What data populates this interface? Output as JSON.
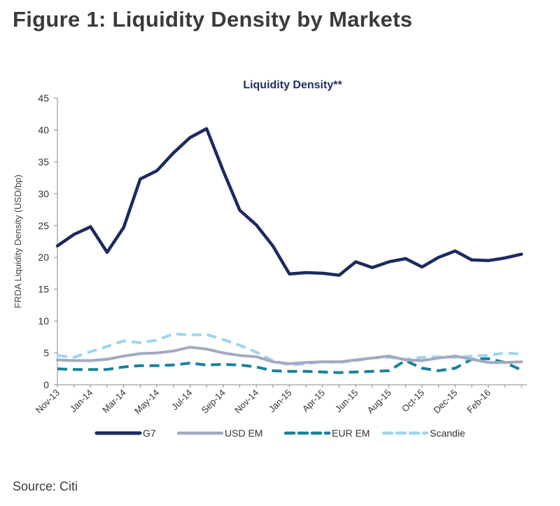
{
  "page": {
    "figure_title": "Figure 1: Liquidity Density by Markets",
    "source": "Source: Citi"
  },
  "chart_data": {
    "type": "line",
    "title": "Liquidity Density**",
    "xlabel": "",
    "ylabel": "FRDA Liquidity Density (USD/bp)",
    "ylim": [
      0,
      45
    ],
    "yticks": [
      0,
      5,
      10,
      15,
      20,
      25,
      30,
      35,
      40,
      45
    ],
    "grid": false,
    "legend": "bottom",
    "categories": [
      "Nov-13",
      "Dec-13",
      "Jan-14",
      "Feb-14",
      "Mar-14",
      "Apr-14",
      "May-14",
      "Jun-14",
      "Jul-14",
      "Aug-14",
      "Sep-14",
      "Oct-14",
      "Nov-14",
      "Dec-14",
      "Jan-15",
      "Feb-15",
      "Mar-15",
      "Apr-15",
      "May-15",
      "Jun-15",
      "Jul-15",
      "Aug-15",
      "Sep-15",
      "Oct-15",
      "Nov-15",
      "Dec-15",
      "Jan-16",
      "Feb-16",
      "Mar-16"
    ],
    "xtick_labels": [
      "Nov-13",
      "Jan-14",
      "Mar-14",
      "May-14",
      "Jul-14",
      "Sep-14",
      "Nov-14",
      "Jan-15",
      "Apr-15",
      "Jun-15",
      "Aug-15",
      "Oct-15",
      "Dec-15",
      "Feb-16"
    ],
    "xtick_indices": [
      0,
      2,
      4,
      6,
      8,
      10,
      12,
      14,
      16,
      18,
      20,
      22,
      24,
      26
    ],
    "series": [
      {
        "name": "G7",
        "color": "#1b2a5e",
        "dash": "solid",
        "width": 4.5,
        "values": [
          21.8,
          23.6,
          24.8,
          20.8,
          24.7,
          32.3,
          33.6,
          36.4,
          38.8,
          40.2,
          33.6,
          27.4,
          25.1,
          21.8,
          17.4,
          17.6,
          17.5,
          17.2,
          19.3,
          18.4,
          19.3,
          19.8,
          18.5,
          20.0,
          21.0,
          19.6,
          19.5,
          19.9,
          20.5
        ]
      },
      {
        "name": "USD EM",
        "color": "#a3a9c2",
        "dash": "solid",
        "width": 4,
        "values": [
          3.9,
          3.8,
          3.8,
          4.0,
          4.5,
          4.9,
          5.0,
          5.3,
          5.9,
          5.6,
          5.0,
          4.6,
          4.4,
          3.6,
          3.3,
          3.5,
          3.6,
          3.6,
          3.9,
          4.2,
          4.5,
          3.9,
          3.8,
          4.2,
          4.5,
          4.0,
          3.5,
          3.5,
          3.6
        ]
      },
      {
        "name": "EUR EM",
        "color": "#17829e",
        "dash": "dashed",
        "width": 4,
        "values": [
          2.5,
          2.4,
          2.4,
          2.4,
          2.8,
          3.0,
          3.0,
          3.1,
          3.4,
          3.1,
          3.2,
          3.1,
          2.8,
          2.2,
          2.1,
          2.1,
          2.0,
          1.9,
          2.0,
          2.1,
          2.2,
          3.8,
          2.6,
          2.2,
          2.6,
          4.0,
          4.1,
          3.5,
          2.3
        ]
      },
      {
        "name": "Scandie",
        "color": "#9ed5f0",
        "dash": "dashed",
        "width": 4,
        "values": [
          4.6,
          4.3,
          5.2,
          6.0,
          6.9,
          6.6,
          7.0,
          8.0,
          7.8,
          7.9,
          7.1,
          6.2,
          5.1,
          3.8,
          3.1,
          3.3,
          3.6,
          3.5,
          3.8,
          4.2,
          4.3,
          4.0,
          4.3,
          4.4,
          4.3,
          4.5,
          4.6,
          5.0,
          4.8
        ]
      }
    ]
  }
}
